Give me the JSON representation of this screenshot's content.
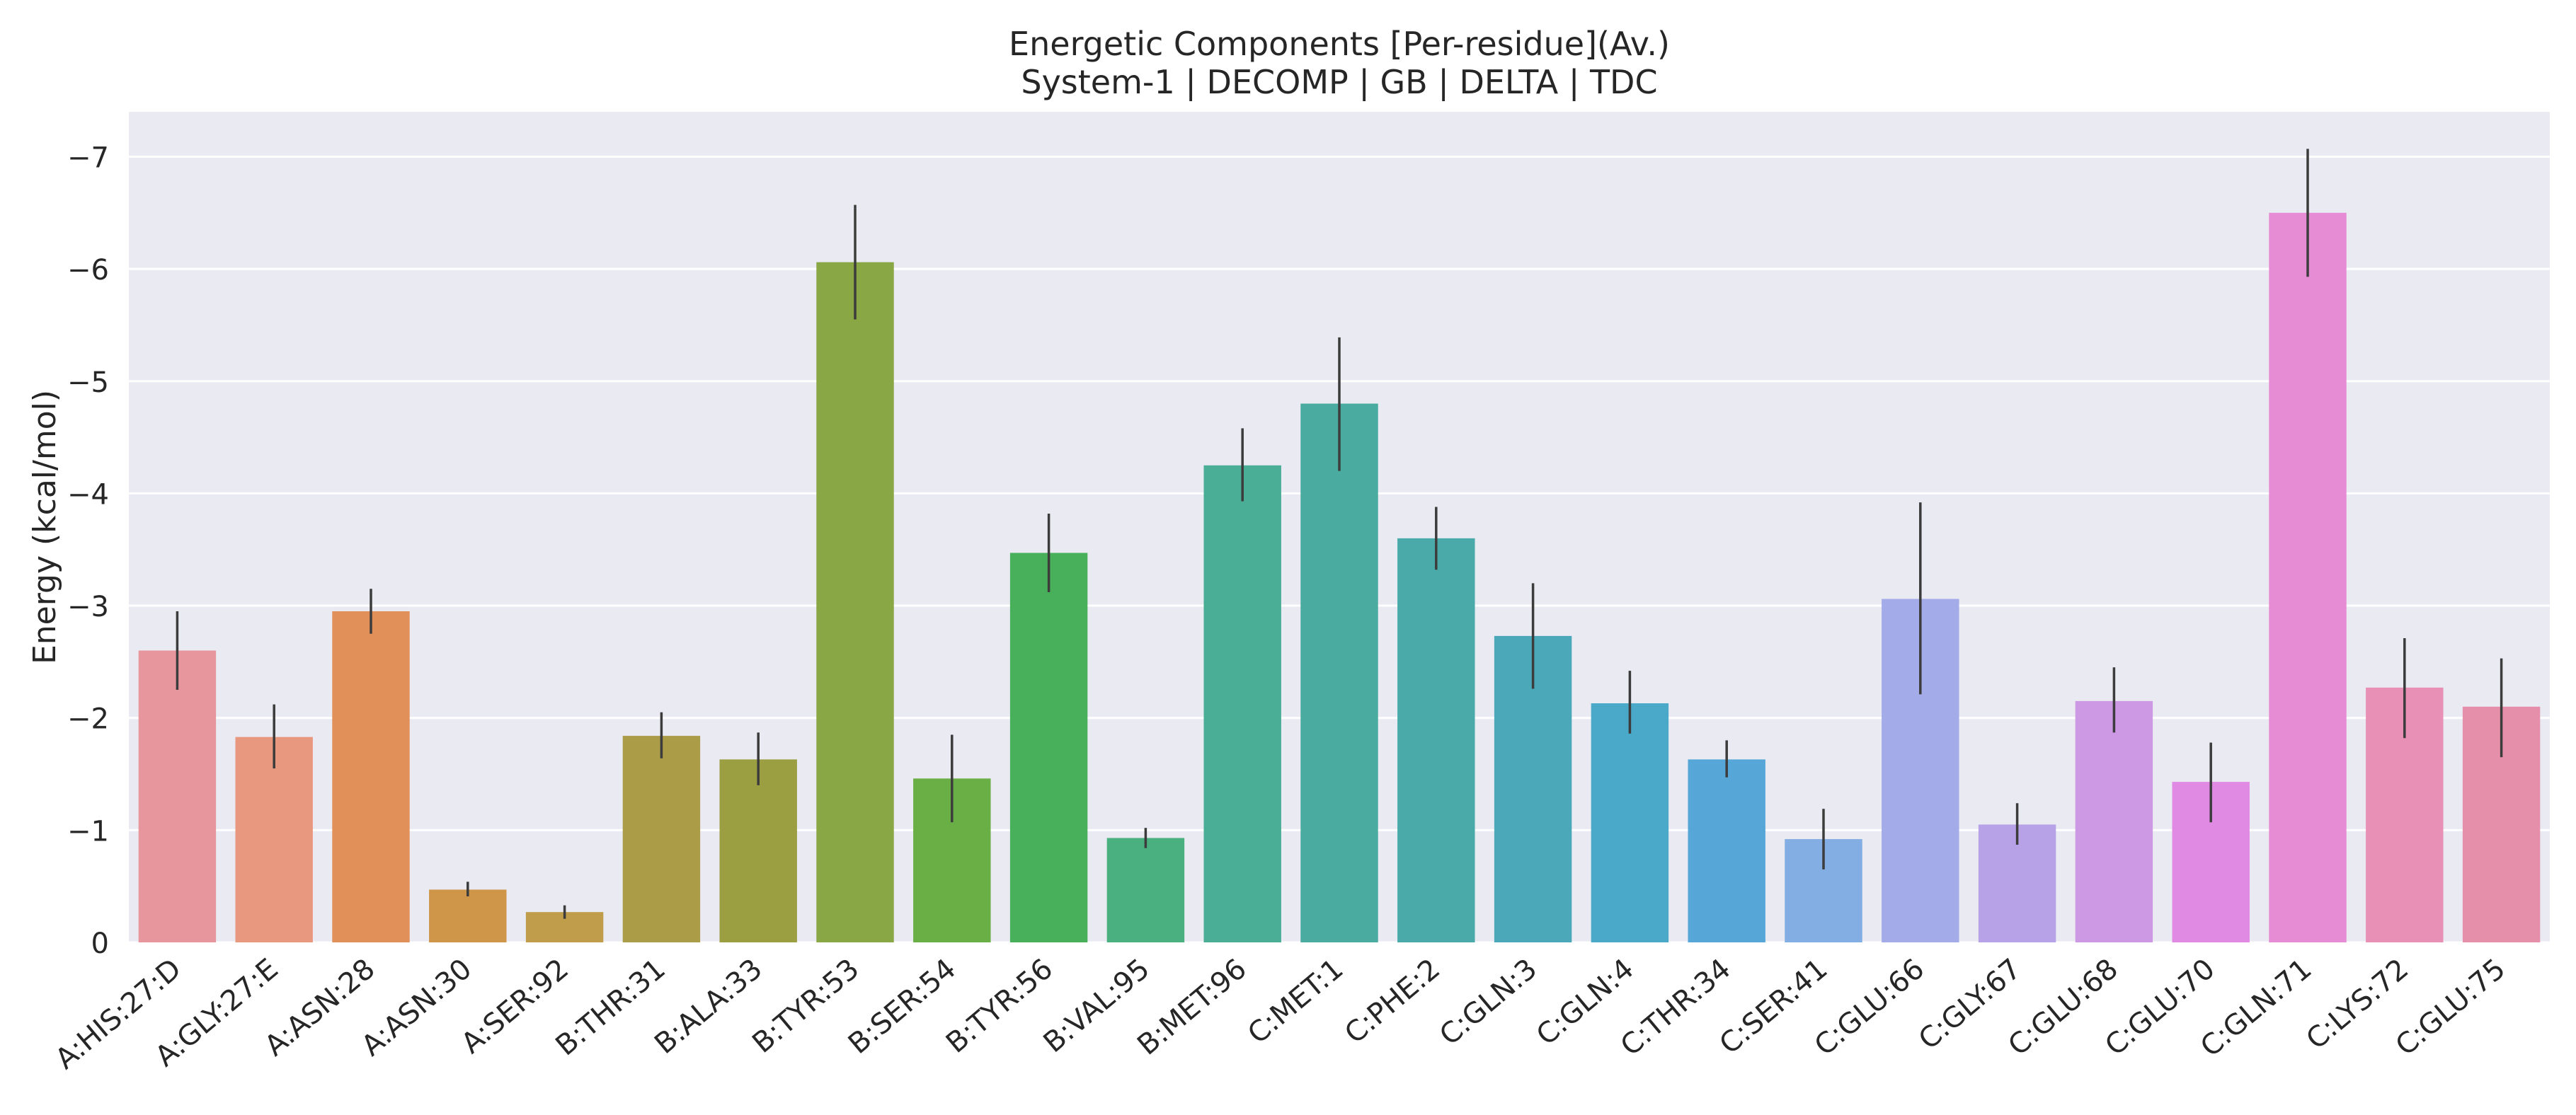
{
  "chart_data": {
    "type": "bar",
    "title": "Energetic Components [Per-residue](Av.)",
    "subtitle": "System-1 | DECOMP | GB | DELTA | TDC",
    "xlabel": "",
    "ylabel": "Energy (kcal/mol)",
    "ylim": [
      0,
      -7.4
    ],
    "y_axis_inverted": true,
    "yticks": [
      0,
      -1,
      -2,
      -3,
      -4,
      -5,
      -6,
      -7
    ],
    "ytick_labels": [
      "0",
      "−1",
      "−2",
      "−3",
      "−4",
      "−5",
      "−6",
      "−7"
    ],
    "grid": true,
    "legend": "none",
    "categories": [
      "A:HIS:27:D",
      "A:GLY:27:E",
      "A:ASN:28",
      "A:ASN:30",
      "A:SER:92",
      "B:THR:31",
      "B:ALA:33",
      "B:TYR:53",
      "B:SER:54",
      "B:TYR:56",
      "B:VAL:95",
      "B:MET:96",
      "C:MET:1",
      "C:PHE:2",
      "C:GLN:3",
      "C:GLN:4",
      "C:THR:34",
      "C:SER:41",
      "C:GLU:66",
      "C:GLY:67",
      "C:GLU:68",
      "C:GLU:70",
      "C:GLN:71",
      "C:LYS:72",
      "C:GLU:75"
    ],
    "values": [
      -2.6,
      -1.83,
      -2.95,
      -0.47,
      -0.27,
      -1.84,
      -1.63,
      -6.06,
      -1.46,
      -3.47,
      -0.93,
      -4.25,
      -4.8,
      -3.6,
      -2.73,
      -2.13,
      -1.63,
      -0.92,
      -3.06,
      -1.05,
      -2.15,
      -1.43,
      -6.5,
      -2.27,
      -2.1
    ],
    "error_low": [
      -2.25,
      -1.55,
      -2.75,
      -0.41,
      -0.21,
      -1.64,
      -1.4,
      -5.55,
      -1.07,
      -3.12,
      -0.84,
      -3.93,
      -4.2,
      -3.32,
      -2.26,
      -1.86,
      -1.47,
      -0.65,
      -2.21,
      -0.87,
      -1.87,
      -1.07,
      -5.93,
      -1.82,
      -1.65
    ],
    "error_high": [
      -2.95,
      -2.12,
      -3.15,
      -0.54,
      -0.33,
      -2.05,
      -1.87,
      -6.57,
      -1.85,
      -3.82,
      -1.02,
      -4.58,
      -5.39,
      -3.88,
      -3.2,
      -2.42,
      -1.8,
      -1.19,
      -3.92,
      -1.24,
      -2.45,
      -1.78,
      -7.07,
      -2.71,
      -2.53
    ],
    "colors": [
      "#e8969e",
      "#e8987f",
      "#e2905a",
      "#cf9548",
      "#c09d4a",
      "#ab9c48",
      "#9b9f42",
      "#8aa746",
      "#6aae46",
      "#48b05a",
      "#4ab080",
      "#4aae97",
      "#4aaca1",
      "#4aaaaa",
      "#4aa8b8",
      "#4aa8c8",
      "#56a6d8",
      "#82aee4",
      "#a3abe8",
      "#b7a2e8",
      "#cd98e4",
      "#e08ae4",
      "#e58cd4",
      "#e890b6",
      "#e58fab"
    ]
  }
}
